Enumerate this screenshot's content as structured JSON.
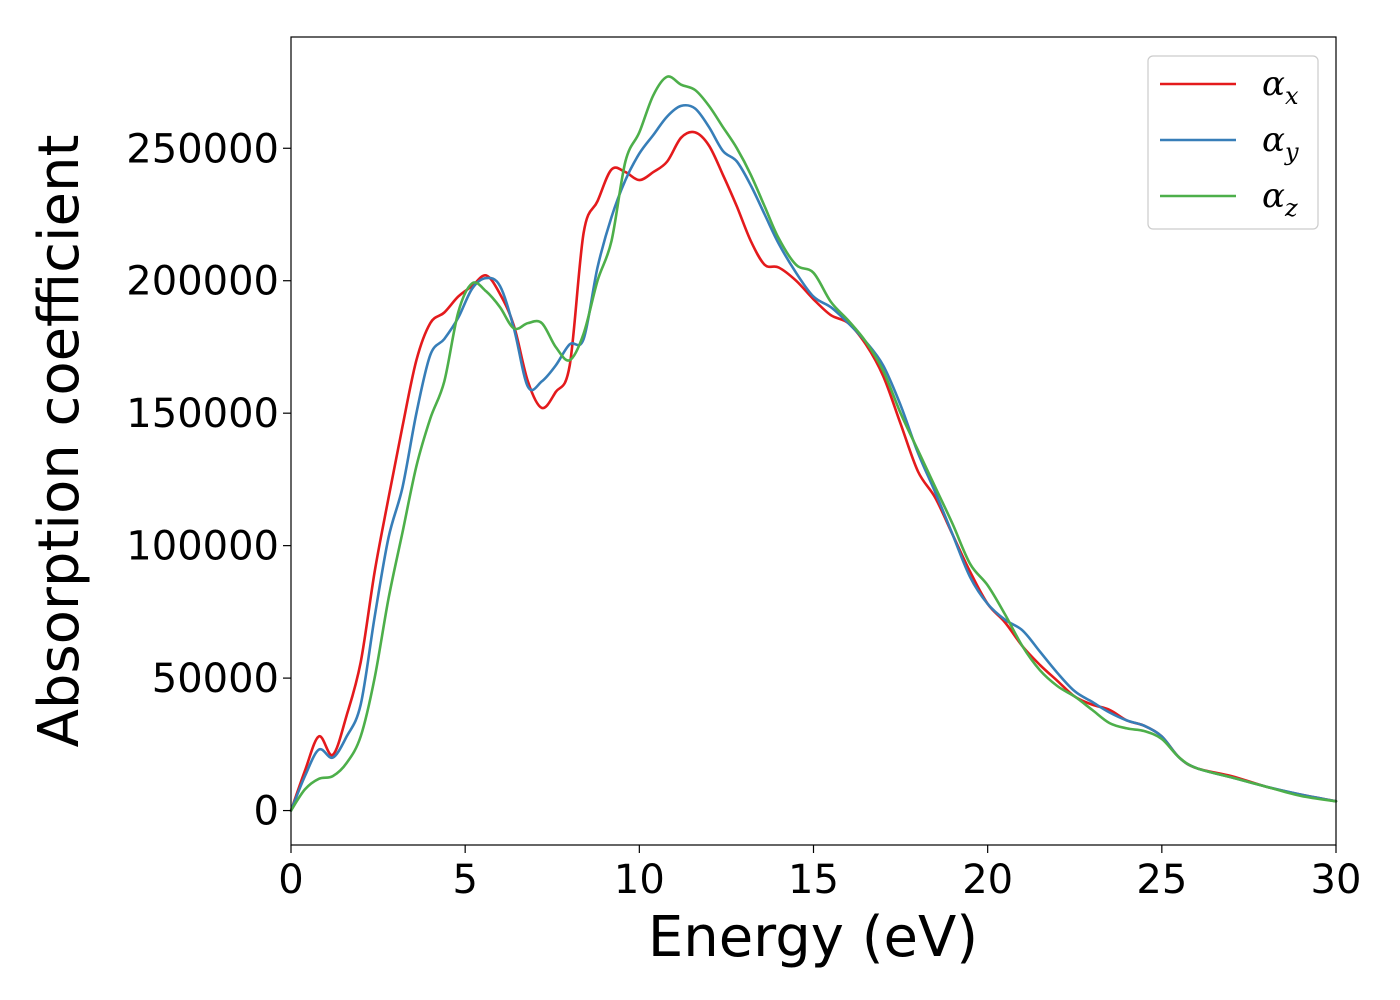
{
  "chart_data": {
    "type": "line",
    "title": "",
    "xlabel": "Energy (eV)",
    "ylabel": "Absorption coefficient",
    "xlim": [
      0,
      30
    ],
    "ylim": [
      -13000,
      292000
    ],
    "xticks": [
      0,
      5,
      10,
      15,
      20,
      25,
      30
    ],
    "yticks": [
      0,
      50000,
      100000,
      150000,
      200000,
      250000
    ],
    "grid": false,
    "legend_position": "top-right",
    "series": [
      {
        "name": "α",
        "subscript": "x",
        "color": "#e41a1c",
        "x": [
          0,
          0.4,
          0.8,
          1.2,
          1.6,
          2,
          2.4,
          2.8,
          3.2,
          3.6,
          4,
          4.4,
          4.8,
          5.2,
          5.6,
          6,
          6.4,
          6.8,
          7.2,
          7.6,
          8,
          8.4,
          8.8,
          9.2,
          9.6,
          10,
          10.4,
          10.8,
          11.2,
          11.6,
          12,
          12.4,
          12.8,
          13.2,
          13.6,
          14,
          14.5,
          15,
          15.5,
          16,
          16.5,
          17,
          17.5,
          18,
          18.5,
          19,
          19.5,
          20,
          20.5,
          21,
          21.5,
          22,
          22.5,
          23,
          23.5,
          24,
          24.5,
          25,
          25.5,
          26,
          27,
          28,
          29,
          30
        ],
        "y": [
          0,
          15000,
          28000,
          21000,
          36000,
          56000,
          90000,
          118000,
          145000,
          170000,
          184000,
          188000,
          194000,
          198000,
          202000,
          195000,
          183000,
          162000,
          152000,
          158000,
          168000,
          218000,
          230000,
          242000,
          241000,
          238000,
          241000,
          245000,
          254000,
          256000,
          251000,
          240000,
          228000,
          215000,
          206000,
          205000,
          200000,
          193000,
          187000,
          184000,
          176000,
          164000,
          146000,
          128000,
          118000,
          104000,
          90000,
          78000,
          71000,
          62000,
          55000,
          49000,
          43000,
          40000,
          38000,
          34000,
          32000,
          28000,
          20000,
          16000,
          13000,
          9000,
          6000,
          3500
        ]
      },
      {
        "name": "α",
        "subscript": "y",
        "color": "#377eb8",
        "x": [
          0,
          0.4,
          0.8,
          1.2,
          1.6,
          2,
          2.4,
          2.8,
          3.2,
          3.6,
          4,
          4.4,
          4.8,
          5.2,
          5.6,
          6,
          6.4,
          6.8,
          7.2,
          7.6,
          8,
          8.4,
          8.8,
          9.2,
          9.6,
          10,
          10.4,
          10.8,
          11.2,
          11.6,
          12,
          12.4,
          12.8,
          13.2,
          13.6,
          14,
          14.5,
          15,
          15.5,
          16,
          16.5,
          17,
          17.5,
          18,
          18.5,
          19,
          19.5,
          20,
          20.5,
          21,
          21.5,
          22,
          22.5,
          23,
          23.5,
          24,
          24.5,
          25,
          25.5,
          26,
          27,
          28,
          29,
          30
        ],
        "y": [
          0,
          13000,
          23000,
          20000,
          28000,
          40000,
          73000,
          103000,
          122000,
          150000,
          172000,
          178000,
          186000,
          197000,
          201000,
          198000,
          182000,
          160000,
          162000,
          168000,
          176000,
          178000,
          205000,
          224000,
          238000,
          248000,
          255000,
          262000,
          266000,
          265000,
          258000,
          249000,
          245000,
          236000,
          225000,
          214000,
          203000,
          194000,
          190000,
          184000,
          177000,
          168000,
          153000,
          135000,
          120000,
          104000,
          88000,
          78000,
          72000,
          68000,
          60000,
          52000,
          45000,
          41000,
          37000,
          34000,
          32000,
          28000,
          20000,
          16000,
          12500,
          9000,
          6000,
          3500
        ]
      },
      {
        "name": "α",
        "subscript": "z",
        "color": "#4daf4a",
        "x": [
          0,
          0.4,
          0.8,
          1.2,
          1.6,
          2,
          2.4,
          2.8,
          3.2,
          3.6,
          4,
          4.4,
          4.8,
          5.2,
          5.6,
          6,
          6.4,
          6.8,
          7.2,
          7.6,
          8,
          8.4,
          8.8,
          9.2,
          9.6,
          10,
          10.4,
          10.8,
          11.2,
          11.6,
          12,
          12.4,
          12.8,
          13.2,
          13.6,
          14,
          14.5,
          15,
          15.5,
          16,
          16.5,
          17,
          17.5,
          18,
          18.5,
          19,
          19.5,
          20,
          20.5,
          21,
          21.5,
          22,
          22.5,
          23,
          23.5,
          24,
          24.5,
          25,
          25.5,
          26,
          27,
          28,
          29,
          30
        ],
        "y": [
          0,
          8000,
          12000,
          13000,
          18000,
          28000,
          50000,
          80000,
          105000,
          130000,
          148000,
          162000,
          188000,
          199000,
          196000,
          190000,
          182000,
          184000,
          184000,
          175000,
          170000,
          180000,
          200000,
          215000,
          245000,
          256000,
          270000,
          277000,
          274000,
          272000,
          266000,
          258000,
          250000,
          240000,
          228000,
          216000,
          206000,
          203000,
          192000,
          185000,
          177000,
          166000,
          150000,
          136000,
          122000,
          108000,
          93000,
          85000,
          74000,
          62000,
          53000,
          47000,
          43000,
          38000,
          33000,
          31000,
          30000,
          27000,
          20000,
          16000,
          12500,
          9000,
          5500,
          3500
        ]
      }
    ]
  }
}
